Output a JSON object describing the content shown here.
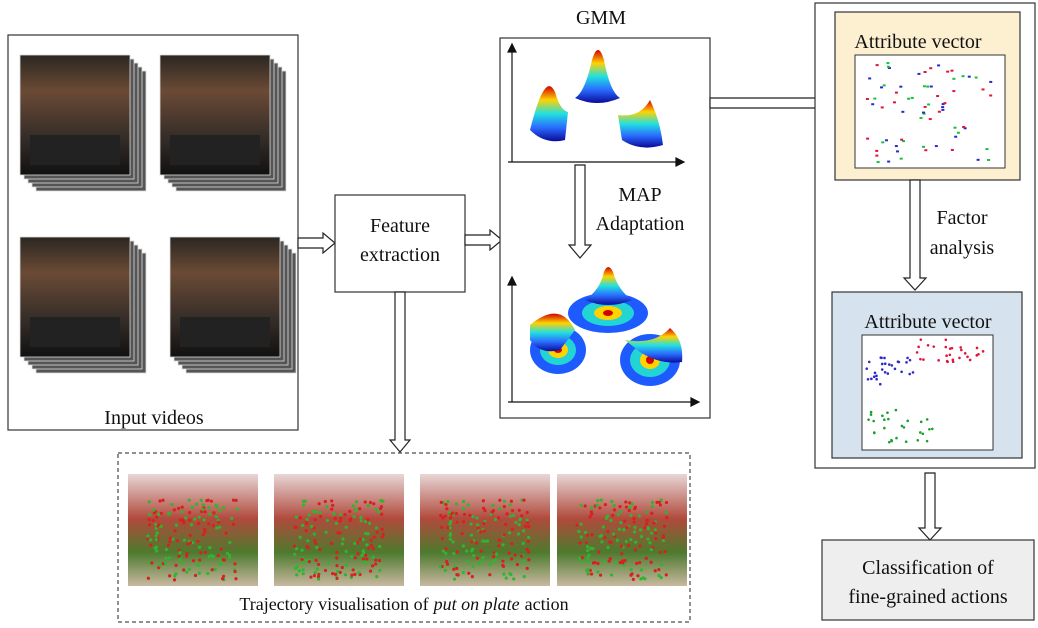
{
  "input": {
    "label": "Input videos"
  },
  "feature_extraction": {
    "lines": [
      "Feature",
      "extraction"
    ]
  },
  "gmm": {
    "title": "GMM"
  },
  "map_adaptation": {
    "lines": [
      "MAP",
      "Adaptation"
    ]
  },
  "attribute_vector_top": {
    "title": "Attribute vector"
  },
  "factor_analysis": {
    "lines": [
      "Factor",
      "analysis"
    ]
  },
  "attribute_vector_bottom": {
    "title": "Attribute vector"
  },
  "trajectory": {
    "caption_prefix": "Trajectory visualisation of",
    "caption_emphasis": "put on plate",
    "caption_suffix": "action"
  },
  "classification": {
    "lines": [
      "Classification of",
      "fine-grained actions"
    ]
  }
}
